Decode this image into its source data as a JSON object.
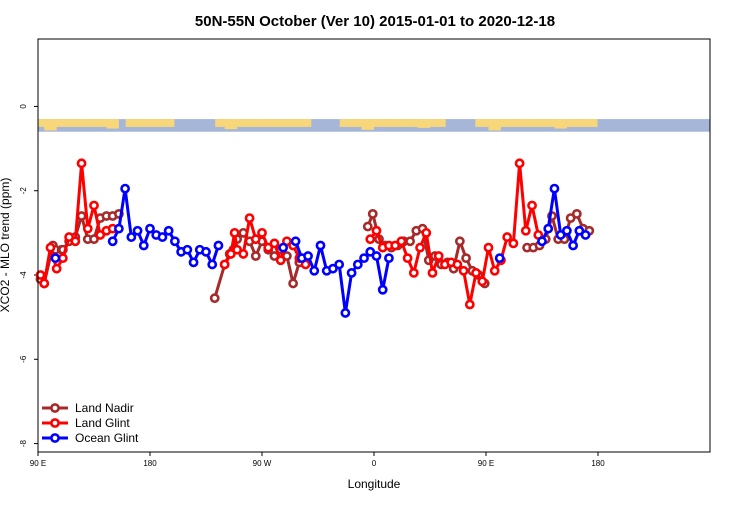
{
  "chart_data": {
    "type": "line",
    "title": "50N-55N October (Ver 10)   2015-01-01 to 2020-12-18",
    "xlabel": "Longitude",
    "ylabel": "XCO2 - MLO trend (ppm)",
    "xlim": [
      90,
      630
    ],
    "ylim": [
      -8.2,
      1.6
    ],
    "x_ticks": [
      {
        "value": 90,
        "label": "90 E"
      },
      {
        "value": 180,
        "label": "180"
      },
      {
        "value": 270,
        "label": "90 W"
      },
      {
        "value": 360,
        "label": "0"
      },
      {
        "value": 450,
        "label": "90 E"
      },
      {
        "value": 540,
        "label": "180"
      }
    ],
    "y_ticks": [
      {
        "value": 0,
        "label": "0"
      },
      {
        "value": -2,
        "label": "-2"
      },
      {
        "value": -4,
        "label": "-4"
      },
      {
        "value": -6,
        "label": "-6"
      },
      {
        "value": -8,
        "label": "-8"
      }
    ],
    "map_strip": {
      "y_top": -0.3,
      "y_bottom": -0.6,
      "land_color": "#f7d77a",
      "ocean_color": "#a5b6d8"
    },
    "legend_position": "bottom-left",
    "series": [
      {
        "name": "Land Nadir",
        "color": "#a52a2a",
        "segments": [
          [
            [
              92,
              -4.1
            ],
            [
              95,
              -4.2
            ],
            [
              102,
              -3.3
            ],
            [
              104,
              -3.4
            ],
            [
              109,
              -3.4
            ],
            [
              110,
              -3.4
            ],
            [
              115,
              -3.2
            ],
            [
              120,
              -3.1
            ],
            [
              125,
              -2.6
            ],
            [
              130,
              -3.15
            ],
            [
              135,
              -3.15
            ],
            [
              140,
              -2.65
            ],
            [
              145,
              -2.6
            ],
            [
              150,
              -2.6
            ],
            [
              155,
              -2.55
            ]
          ],
          [
            [
              232,
              -4.55
            ],
            [
              240,
              -3.75
            ],
            [
              244,
              -3.5
            ],
            [
              247,
              -3.4
            ],
            [
              250,
              -3.15
            ],
            [
              255,
              -3.0
            ],
            [
              260,
              -3.2
            ],
            [
              265,
              -3.55
            ],
            [
              270,
              -3.2
            ],
            [
              275,
              -3.4
            ],
            [
              280,
              -3.55
            ],
            [
              285,
              -3.4
            ],
            [
              290,
              -3.55
            ],
            [
              295,
              -4.2
            ],
            [
              300,
              -3.7
            ],
            [
              305,
              -3.6
            ]
          ],
          [
            [
              355,
              -2.85
            ],
            [
              359,
              -2.55
            ],
            [
              364,
              -3.15
            ],
            [
              369,
              -3.3
            ],
            [
              374,
              -3.35
            ],
            [
              379,
              -3.3
            ],
            [
              384,
              -3.2
            ],
            [
              389,
              -3.2
            ],
            [
              394,
              -2.95
            ],
            [
              399,
              -2.9
            ],
            [
              404,
              -3.65
            ],
            [
              409,
              -3.55
            ],
            [
              414,
              -3.75
            ],
            [
              419,
              -3.7
            ],
            [
              424,
              -3.85
            ],
            [
              429,
              -3.2
            ],
            [
              434,
              -3.6
            ],
            [
              439,
              -3.9
            ],
            [
              444,
              -4.0
            ],
            [
              449,
              -4.2
            ]
          ],
          [
            [
              483,
              -3.35
            ],
            [
              488,
              -3.35
            ],
            [
              493,
              -3.3
            ],
            [
              498,
              -3.15
            ],
            [
              503,
              -2.6
            ],
            [
              508,
              -3.15
            ],
            [
              513,
              -3.15
            ],
            [
              518,
              -2.65
            ],
            [
              523,
              -2.55
            ],
            [
              528,
              -2.9
            ],
            [
              533,
              -2.95
            ]
          ]
        ]
      },
      {
        "name": "Land Glint",
        "color": "#ff0000",
        "segments": [
          [
            [
              92,
              -4.0
            ],
            [
              95,
              -4.2
            ],
            [
              100,
              -3.35
            ],
            [
              105,
              -3.85
            ],
            [
              110,
              -3.6
            ],
            [
              115,
              -3.1
            ],
            [
              120,
              -3.2
            ],
            [
              125,
              -1.35
            ],
            [
              130,
              -2.9
            ],
            [
              135,
              -2.35
            ],
            [
              140,
              -3.05
            ],
            [
              145,
              -2.95
            ],
            [
              150,
              -2.9
            ]
          ],
          [
            [
              240,
              -3.75
            ],
            [
              245,
              -3.5
            ],
            [
              248,
              -3.0
            ],
            [
              250,
              -3.4
            ],
            [
              255,
              -3.5
            ],
            [
              260,
              -2.65
            ],
            [
              265,
              -3.15
            ],
            [
              270,
              -3.0
            ],
            [
              275,
              -3.35
            ],
            [
              280,
              -3.25
            ],
            [
              285,
              -3.65
            ],
            [
              290,
              -3.2
            ],
            [
              295,
              -3.3
            ],
            [
              300,
              -3.6
            ],
            [
              305,
              -3.75
            ]
          ],
          [
            [
              357,
              -3.15
            ],
            [
              362,
              -2.95
            ],
            [
              367,
              -3.35
            ],
            [
              372,
              -3.3
            ],
            [
              377,
              -3.3
            ],
            [
              382,
              -3.2
            ],
            [
              387,
              -3.6
            ],
            [
              392,
              -3.95
            ],
            [
              397,
              -3.35
            ],
            [
              402,
              -3.0
            ],
            [
              407,
              -3.95
            ],
            [
              412,
              -3.55
            ],
            [
              417,
              -3.75
            ],
            [
              422,
              -3.7
            ],
            [
              427,
              -3.75
            ],
            [
              432,
              -3.9
            ],
            [
              437,
              -4.7
            ],
            [
              442,
              -3.95
            ],
            [
              447,
              -4.15
            ],
            [
              452,
              -3.35
            ],
            [
              457,
              -3.9
            ],
            [
              462,
              -3.65
            ],
            [
              467,
              -3.1
            ],
            [
              472,
              -3.25
            ],
            [
              477,
              -1.35
            ],
            [
              482,
              -2.95
            ],
            [
              487,
              -2.35
            ],
            [
              492,
              -3.05
            ]
          ]
        ]
      },
      {
        "name": "Ocean Glint",
        "color": "#0000ff",
        "segments": [
          [
            [
              104,
              -3.6
            ]
          ],
          [
            [
              150,
              -3.2
            ],
            [
              155,
              -2.9
            ],
            [
              160,
              -1.95
            ],
            [
              165,
              -3.1
            ],
            [
              170,
              -2.95
            ],
            [
              175,
              -3.3
            ],
            [
              180,
              -2.9
            ],
            [
              185,
              -3.05
            ],
            [
              190,
              -3.1
            ],
            [
              195,
              -2.95
            ],
            [
              200,
              -3.2
            ],
            [
              205,
              -3.45
            ],
            [
              210,
              -3.4
            ],
            [
              215,
              -3.7
            ],
            [
              220,
              -3.4
            ],
            [
              225,
              -3.45
            ],
            [
              230,
              -3.75
            ],
            [
              235,
              -3.3
            ]
          ],
          [
            [
              287,
              -3.35
            ]
          ],
          [
            [
              297,
              -3.2
            ],
            [
              302,
              -3.6
            ],
            [
              307,
              -3.55
            ],
            [
              312,
              -3.9
            ],
            [
              317,
              -3.3
            ],
            [
              322,
              -3.9
            ],
            [
              327,
              -3.85
            ],
            [
              332,
              -3.75
            ],
            [
              337,
              -4.9
            ],
            [
              342,
              -3.95
            ],
            [
              347,
              -3.75
            ],
            [
              352,
              -3.6
            ],
            [
              357,
              -3.45
            ],
            [
              362,
              -3.55
            ],
            [
              367,
              -4.35
            ],
            [
              372,
              -3.6
            ]
          ],
          [
            [
              461,
              -3.6
            ]
          ],
          [
            [
              495,
              -3.2
            ],
            [
              500,
              -2.9
            ],
            [
              505,
              -1.95
            ],
            [
              510,
              -3.05
            ],
            [
              515,
              -2.95
            ],
            [
              520,
              -3.3
            ],
            [
              525,
              -2.95
            ],
            [
              530,
              -3.05
            ]
          ]
        ]
      }
    ]
  }
}
